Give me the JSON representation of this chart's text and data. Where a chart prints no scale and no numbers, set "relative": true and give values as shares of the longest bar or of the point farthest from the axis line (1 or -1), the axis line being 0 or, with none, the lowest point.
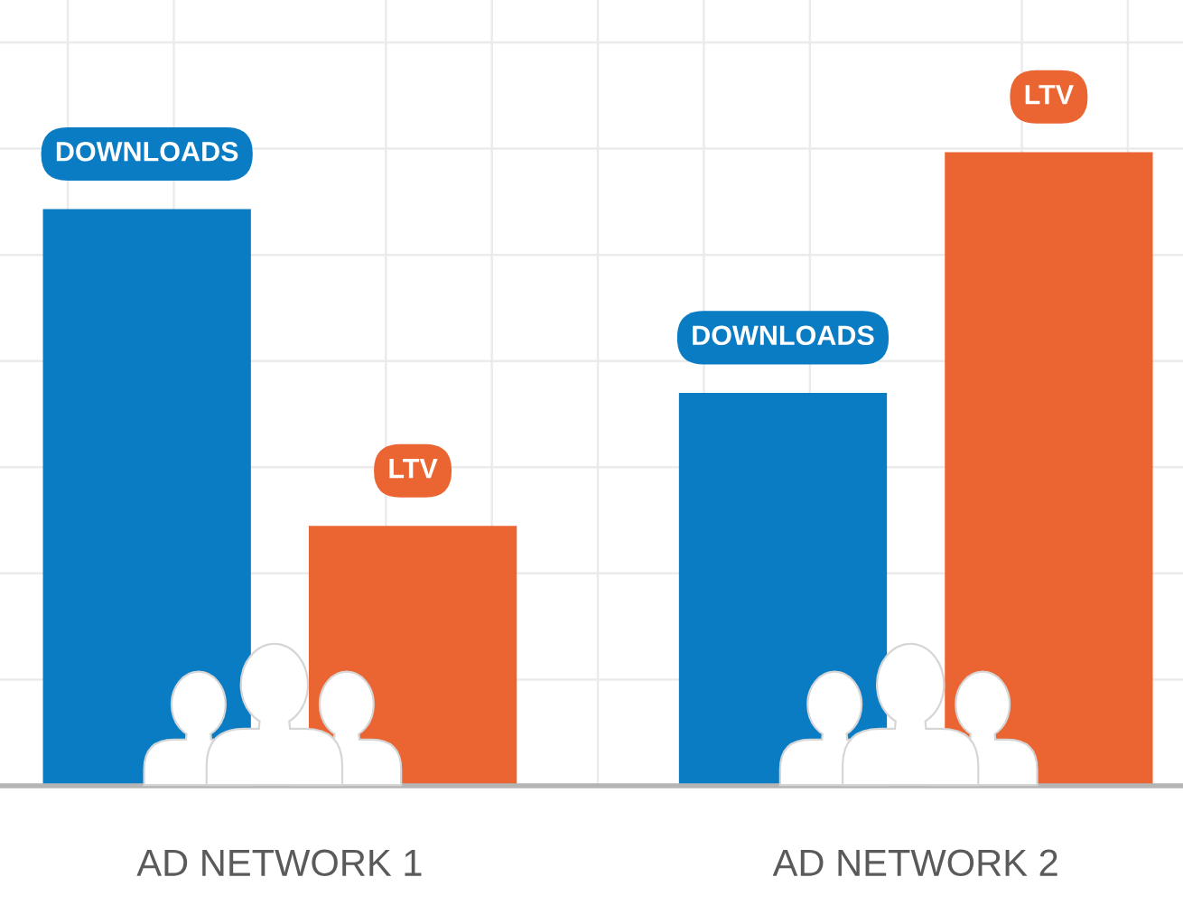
{
  "chart_data": {
    "type": "bar",
    "categories": [
      "AD NETWORK 1",
      "AD NETWORK 2"
    ],
    "relative": true,
    "grid": true,
    "series": [
      {
        "name": "DOWNLOADS",
        "color": "#0a7cc4",
        "values": [
          0.91,
          0.62
        ]
      },
      {
        "name": "LTV",
        "color": "#eb6532",
        "values": [
          0.41,
          1
        ]
      }
    ]
  }
}
